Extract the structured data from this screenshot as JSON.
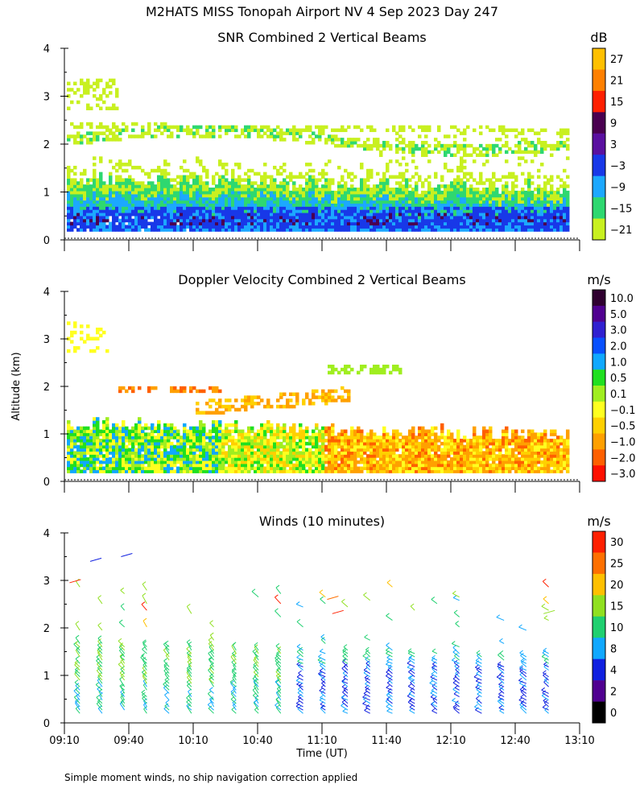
{
  "title": "M2HATS MISS Tonopah Airport NV   4 Sep 2023 Day 247",
  "ylabel": "Altitude (km)",
  "xlabel": "Time (UT)",
  "footnote": "Simple moment winds, no ship navigation correction applied",
  "x_ticks": [
    "09:10",
    "09:40",
    "10:10",
    "10:40",
    "11:10",
    "11:40",
    "12:10",
    "12:40",
    "13:10"
  ],
  "y_ticks": [
    "0",
    "1",
    "2",
    "3",
    "4"
  ],
  "chart_data": [
    {
      "type": "heatmap",
      "title": "SNR Combined 2 Vertical Beams",
      "unit": "dB",
      "x_range": [
        "09:10",
        "13:10"
      ],
      "y_range": [
        0,
        4
      ],
      "colorbar": {
        "labels": [
          "27",
          "21",
          "15",
          "9",
          "3",
          "−3",
          "−9",
          "−15",
          "−21"
        ],
        "colors": [
          "#ffc000",
          "#ff8000",
          "#ff2000",
          "#4a0050",
          "#5a10a0",
          "#1838e8",
          "#1ca8ff",
          "#2ed870",
          "#c8f020"
        ]
      }
    },
    {
      "type": "heatmap",
      "title": "Doppler Velocity Combined 2 Vertical Beams",
      "unit": "m/s",
      "x_range": [
        "09:10",
        "13:10"
      ],
      "y_range": [
        0,
        4
      ],
      "colorbar": {
        "labels": [
          "10.0",
          "5.0",
          "3.0",
          "2.0",
          "1.0",
          "0.5",
          "0.1",
          "−0.1",
          "−0.5",
          "−1.0",
          "−2.0",
          "−3.0"
        ],
        "colors": [
          "#300030",
          "#500090",
          "#3020d0",
          "#0850ff",
          "#10a8ff",
          "#20e020",
          "#a0ee20",
          "#ffff20",
          "#ffd000",
          "#ffa000",
          "#ff6000",
          "#ff1000"
        ]
      }
    },
    {
      "type": "barbs",
      "title": "Winds (10 minutes)",
      "unit": "m/s",
      "x_range": [
        "09:10",
        "13:10"
      ],
      "y_range": [
        0,
        4
      ],
      "colorbar": {
        "labels": [
          "30",
          "25",
          "20",
          "15",
          "10",
          "8",
          "4",
          "2",
          "0"
        ],
        "colors": [
          "#ff2000",
          "#ff7000",
          "#ffc000",
          "#90e020",
          "#20d070",
          "#10a8ff",
          "#1020e0",
          "#500090",
          "#000000"
        ]
      }
    }
  ]
}
